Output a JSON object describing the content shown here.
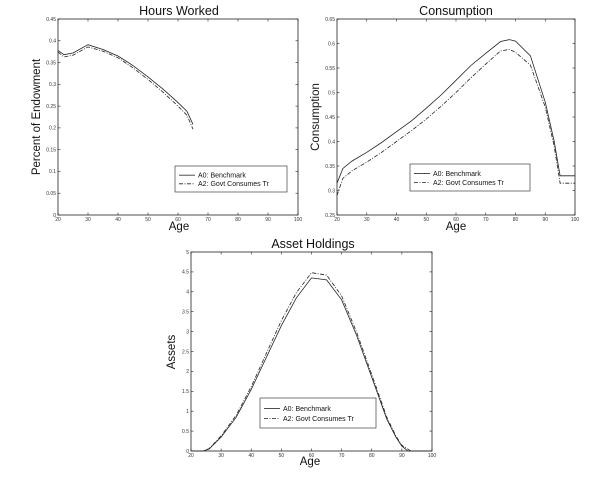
{
  "chart_data": [
    {
      "type": "line",
      "title": "Hours Worked",
      "xlabel": "Age",
      "ylabel": "Percent of Endowment",
      "xlim": [
        20,
        100
      ],
      "ylim": [
        0,
        0.45
      ],
      "xticks": [
        "20",
        "30",
        "40",
        "50",
        "60",
        "70",
        "80",
        "90",
        "100"
      ],
      "yticks": [
        "0",
        "0.05",
        "0.1",
        "0.15",
        "0.2",
        "0.25",
        "0.3",
        "0.35",
        "0.4",
        "0.45"
      ],
      "legend": "bottom-right",
      "series": [
        {
          "name": "A0: Benchmark",
          "style": "solid",
          "x": [
            20,
            22,
            25,
            30,
            35,
            40,
            45,
            50,
            55,
            60,
            63,
            65
          ],
          "y": [
            0.378,
            0.368,
            0.372,
            0.391,
            0.38,
            0.365,
            0.343,
            0.317,
            0.289,
            0.258,
            0.238,
            0.208
          ]
        },
        {
          "name": "A2: Govt Consumes Tr",
          "style": "dashdot",
          "x": [
            20,
            22,
            25,
            30,
            35,
            40,
            45,
            50,
            55,
            60,
            63,
            65
          ],
          "y": [
            0.374,
            0.363,
            0.367,
            0.386,
            0.376,
            0.361,
            0.338,
            0.311,
            0.282,
            0.25,
            0.229,
            0.197
          ]
        }
      ]
    },
    {
      "type": "line",
      "title": "Consumption",
      "xlabel": "Age",
      "ylabel": "Consumption",
      "xlim": [
        20,
        100
      ],
      "ylim": [
        0.25,
        0.65
      ],
      "xticks": [
        "20",
        "30",
        "40",
        "50",
        "60",
        "70",
        "80",
        "90",
        "100"
      ],
      "yticks": [
        "0.25",
        "0.3",
        "0.35",
        "0.4",
        "0.45",
        "0.5",
        "0.55",
        "0.6",
        "0.65"
      ],
      "legend": "bottom-right",
      "series": [
        {
          "name": "A0: Benchmark",
          "style": "solid",
          "x": [
            20,
            22,
            25,
            30,
            35,
            40,
            45,
            50,
            55,
            60,
            65,
            70,
            75,
            78,
            80,
            85,
            90,
            93,
            95,
            100
          ],
          "y": [
            0.315,
            0.345,
            0.36,
            0.378,
            0.398,
            0.42,
            0.442,
            0.468,
            0.495,
            0.525,
            0.555,
            0.58,
            0.604,
            0.608,
            0.605,
            0.575,
            0.48,
            0.4,
            0.33,
            0.33
          ]
        },
        {
          "name": "A2: Govt Consumes Tr",
          "style": "dashdot",
          "x": [
            20,
            22,
            25,
            30,
            35,
            40,
            45,
            50,
            55,
            60,
            65,
            70,
            75,
            78,
            80,
            85,
            90,
            93,
            95,
            100
          ],
          "y": [
            0.29,
            0.325,
            0.34,
            0.358,
            0.378,
            0.4,
            0.422,
            0.446,
            0.472,
            0.5,
            0.53,
            0.558,
            0.585,
            0.588,
            0.582,
            0.556,
            0.47,
            0.39,
            0.315,
            0.315
          ]
        }
      ]
    },
    {
      "type": "line",
      "title": "Asset Holdings",
      "xlabel": "Age",
      "ylabel": "Assets",
      "xlim": [
        20,
        100
      ],
      "ylim": [
        0,
        5
      ],
      "xticks": [
        "20",
        "30",
        "40",
        "50",
        "60",
        "70",
        "80",
        "90",
        "100"
      ],
      "yticks": [
        "0",
        "0.5",
        "1",
        "1.5",
        "2",
        "2.5",
        "3",
        "3.5",
        "4",
        "4.5",
        "5"
      ],
      "legend": "bottom-left",
      "series": [
        {
          "name": "A0: Benchmark",
          "style": "solid",
          "x": [
            20,
            24,
            26,
            30,
            35,
            40,
            45,
            50,
            55,
            60,
            65,
            70,
            75,
            80,
            85,
            88,
            90,
            92,
            100
          ],
          "y": [
            0,
            0,
            0.05,
            0.35,
            0.85,
            1.55,
            2.35,
            3.15,
            3.85,
            4.35,
            4.3,
            3.8,
            2.9,
            1.85,
            0.8,
            0.35,
            0.12,
            0,
            0
          ]
        },
        {
          "name": "A2: Govt Consumes Tr",
          "style": "dashdot",
          "x": [
            20,
            24,
            26,
            30,
            35,
            40,
            45,
            50,
            55,
            60,
            65,
            70,
            75,
            80,
            85,
            88,
            90,
            93,
            100
          ],
          "y": [
            0,
            0,
            0.06,
            0.38,
            0.9,
            1.62,
            2.45,
            3.28,
            3.98,
            4.48,
            4.42,
            3.9,
            2.98,
            1.92,
            0.85,
            0.38,
            0.14,
            0,
            0
          ]
        }
      ]
    }
  ]
}
